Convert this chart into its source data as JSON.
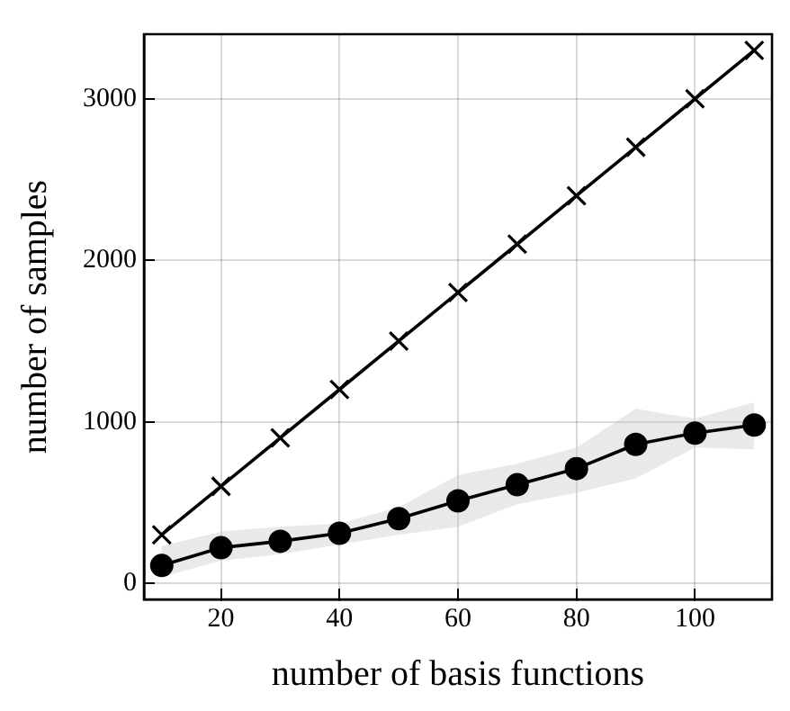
{
  "chart_data": {
    "type": "line",
    "xlabel": "number of basis functions",
    "ylabel": "number of samples",
    "x": [
      10,
      20,
      30,
      40,
      50,
      60,
      70,
      80,
      90,
      100,
      110
    ],
    "series": [
      {
        "color": "#000000",
        "marker": "cross",
        "values": [
          300,
          600,
          900,
          1200,
          1500,
          1800,
          2100,
          2400,
          2700,
          3000,
          3300
        ]
      },
      {
        "color": "#000000",
        "marker": "circle",
        "values": [
          110,
          220,
          260,
          310,
          400,
          510,
          610,
          710,
          860,
          930,
          980
        ],
        "lower": [
          40,
          140,
          180,
          240,
          300,
          350,
          490,
          560,
          650,
          840,
          830
        ],
        "upper": [
          230,
          320,
          350,
          370,
          470,
          670,
          740,
          840,
          1080,
          1020,
          1120
        ]
      }
    ],
    "xlim": [
      7,
      113
    ],
    "xticks": [
      20,
      40,
      60,
      80,
      100
    ],
    "ylim": [
      -100,
      3400
    ],
    "yticks": [
      0,
      1000,
      2000,
      3000
    ],
    "grid": true,
    "legend": false,
    "line_style": "solid"
  }
}
